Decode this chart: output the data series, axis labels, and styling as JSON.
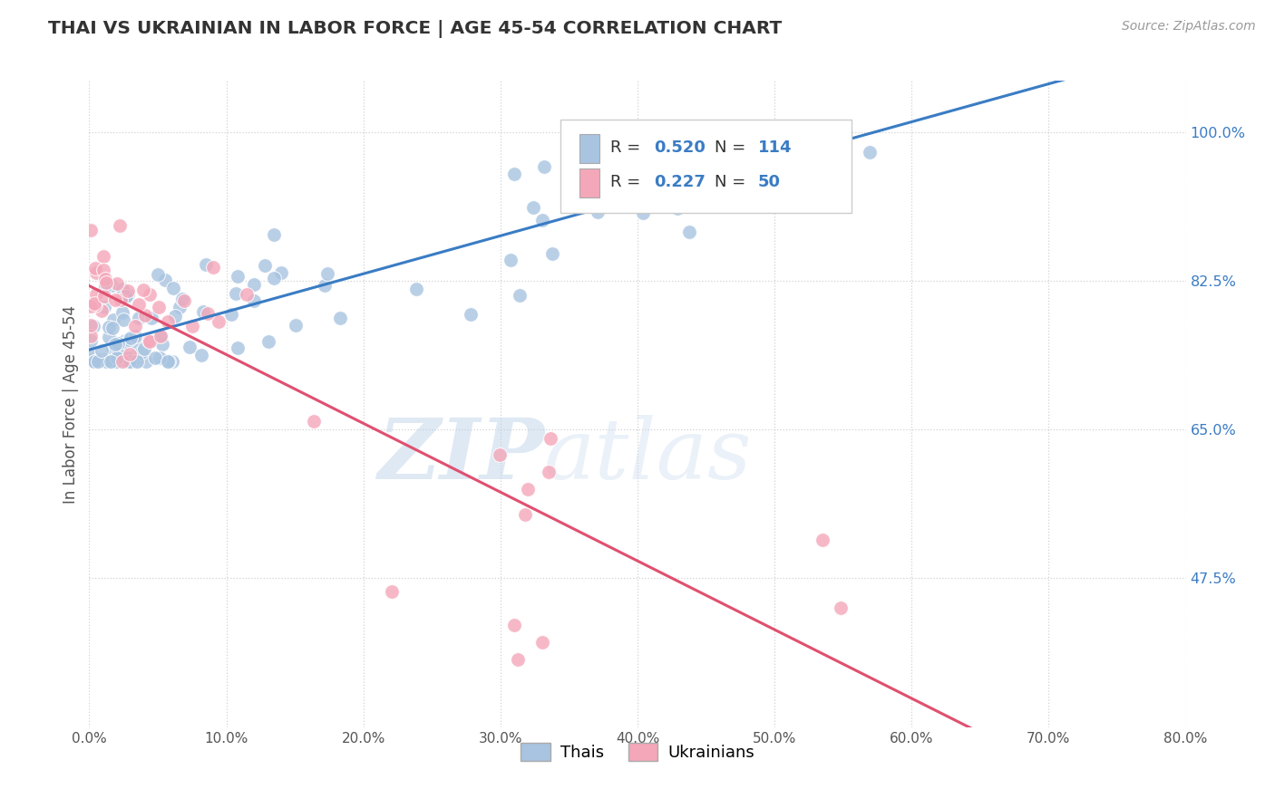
{
  "title": "THAI VS UKRAINIAN IN LABOR FORCE | AGE 45-54 CORRELATION CHART",
  "source_text": "Source: ZipAtlas.com",
  "ylabel": "In Labor Force | Age 45-54",
  "xlim": [
    0.0,
    0.8
  ],
  "ylim": [
    0.3,
    1.06
  ],
  "yticks": [
    0.475,
    0.65,
    0.825,
    1.0
  ],
  "ytick_labels": [
    "47.5%",
    "65.0%",
    "82.5%",
    "100.0%"
  ],
  "xticks": [
    0.0,
    0.1,
    0.2,
    0.3,
    0.4,
    0.5,
    0.6,
    0.7,
    0.8
  ],
  "xtick_labels": [
    "0.0%",
    "10.0%",
    "20.0%",
    "30.0%",
    "40.0%",
    "50.0%",
    "60.0%",
    "70.0%",
    "80.0%"
  ],
  "thai_color": "#a8c4e0",
  "ukrainian_color": "#f4a7b9",
  "trend_thai_color": "#3a7cc4",
  "trend_ukrainian_color": "#e05070",
  "thai_R": 0.52,
  "thai_N": 114,
  "ukrainian_R": 0.227,
  "ukrainian_N": 50,
  "watermark_zip": "ZIP",
  "watermark_atlas": "atlas",
  "background_color": "#ffffff",
  "grid_color": "#cccccc",
  "title_color": "#333333",
  "axis_label_color": "#555555",
  "ytick_color": "#3a7cc4",
  "xtick_color": "#555555",
  "legend_r_color": "#3a7cc4",
  "legend_n_color": "#3a7cc4"
}
